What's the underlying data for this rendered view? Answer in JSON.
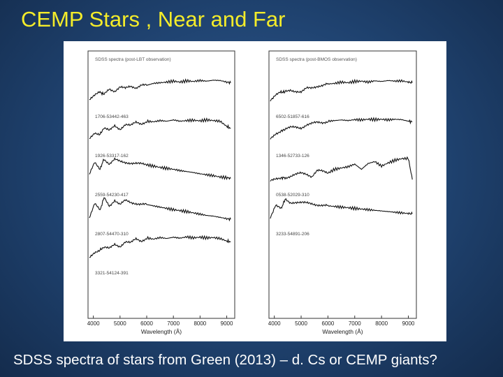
{
  "slide": {
    "title": "CEMP Stars , Near and Far",
    "caption": "SDSS spectra of stars from Green (2013) – d. Cs or CEMP giants?"
  },
  "colors": {
    "background": "#1f426f",
    "title": "#f4ec2a",
    "caption": "#ffffff",
    "spectrum": "#111111"
  },
  "chart_data": [
    {
      "type": "line",
      "title": "SDSS spectra (post-LBT observation)",
      "xlabel": "Wavelength (Å)",
      "xlim": [
        3800,
        9300
      ],
      "xticks": [
        4000,
        5000,
        6000,
        7000,
        8000,
        9000
      ],
      "grid": false,
      "stacked_offset": true,
      "series": [
        {
          "name": "1706-53442-463",
          "x": [
            3850,
            4050,
            4250,
            4400,
            4600,
            4800,
            5000,
            5200,
            5400,
            5600,
            5800,
            6000,
            6250,
            6500,
            6750,
            7000,
            7250,
            7500,
            7750,
            8000,
            8250,
            8500,
            8750,
            9000,
            9150
          ],
          "y": [
            0.38,
            0.5,
            0.58,
            0.52,
            0.7,
            0.62,
            0.74,
            0.7,
            0.77,
            0.73,
            0.82,
            0.8,
            0.86,
            0.88,
            0.9,
            0.93,
            0.9,
            0.94,
            0.92,
            0.95,
            0.93,
            0.96,
            0.95,
            0.9,
            0.88
          ]
        },
        {
          "name": "1926-53317-162",
          "x": [
            3850,
            4050,
            4250,
            4400,
            4600,
            4800,
            5000,
            5200,
            5400,
            5600,
            5800,
            6000,
            6250,
            6500,
            6750,
            7000,
            7250,
            7500,
            7750,
            8000,
            8250,
            8500,
            8750,
            9000,
            9150
          ],
          "y": [
            0.35,
            0.55,
            0.5,
            0.68,
            0.6,
            0.76,
            0.66,
            0.8,
            0.76,
            0.86,
            0.82,
            0.9,
            0.88,
            0.92,
            0.9,
            0.94,
            0.9,
            0.92,
            0.93,
            0.91,
            0.94,
            0.92,
            0.9,
            0.74,
            0.68
          ]
        },
        {
          "name": "2559-54230-417",
          "x": [
            3850,
            4050,
            4250,
            4400,
            4600,
            4800,
            5000,
            5200,
            5400,
            5600,
            5800,
            6000,
            6250,
            6500,
            6750,
            7000,
            7250,
            7500,
            7750,
            8000,
            8250,
            8500,
            8750,
            9000,
            9150
          ],
          "y": [
            0.45,
            0.82,
            0.62,
            0.95,
            0.78,
            0.92,
            0.86,
            0.84,
            0.82,
            0.8,
            0.78,
            0.76,
            0.72,
            0.68,
            0.65,
            0.62,
            0.58,
            0.55,
            0.52,
            0.48,
            0.45,
            0.42,
            0.38,
            0.36,
            0.34
          ]
        },
        {
          "name": "2807-54470-310",
          "x": [
            3850,
            4050,
            4250,
            4400,
            4600,
            4800,
            5000,
            5200,
            5400,
            5600,
            5800,
            6000,
            6250,
            6500,
            6750,
            7000,
            7250,
            7500,
            7750,
            8000,
            8250,
            8500,
            8750,
            9000,
            9150
          ],
          "y": [
            0.35,
            0.78,
            0.55,
            0.96,
            0.7,
            0.88,
            0.74,
            0.86,
            0.8,
            0.78,
            0.76,
            0.74,
            0.7,
            0.66,
            0.62,
            0.58,
            0.55,
            0.52,
            0.48,
            0.44,
            0.4,
            0.38,
            0.34,
            0.3,
            0.28
          ]
        },
        {
          "name": "3321-54124-391",
          "x": [
            3850,
            4050,
            4250,
            4400,
            4600,
            4800,
            5000,
            5200,
            5400,
            5600,
            5800,
            6000,
            6250,
            6500,
            6750,
            7000,
            7250,
            7500,
            7750,
            8000,
            8250,
            8500,
            8750,
            9000,
            9150
          ],
          "y": [
            0.3,
            0.48,
            0.55,
            0.62,
            0.58,
            0.72,
            0.66,
            0.8,
            0.76,
            0.88,
            0.82,
            0.92,
            0.88,
            0.93,
            0.9,
            0.94,
            0.91,
            0.95,
            0.92,
            0.94,
            0.92,
            0.93,
            0.9,
            0.82,
            0.8
          ]
        }
      ]
    },
    {
      "type": "line",
      "title": "SDSS spectra (post-BMOS observation)",
      "xlabel": "Wavelength (Å)",
      "xlim": [
        3800,
        9300
      ],
      "xticks": [
        4000,
        5000,
        6000,
        7000,
        8000,
        9000
      ],
      "grid": false,
      "stacked_offset": true,
      "series": [
        {
          "name": "6502-51857-616",
          "x": [
            3850,
            4050,
            4250,
            4400,
            4600,
            4800,
            5000,
            5200,
            5400,
            5600,
            5800,
            6000,
            6250,
            6500,
            6750,
            7000,
            7250,
            7500,
            7750,
            8000,
            8250,
            8500,
            8750,
            9000,
            9150
          ],
          "y": [
            0.35,
            0.5,
            0.58,
            0.6,
            0.66,
            0.62,
            0.58,
            0.7,
            0.72,
            0.78,
            0.8,
            0.84,
            0.86,
            0.9,
            0.88,
            0.92,
            0.93,
            0.9,
            0.94,
            0.92,
            0.95,
            0.93,
            0.94,
            0.9,
            0.88
          ]
        },
        {
          "name": "1346-52733-126",
          "x": [
            3850,
            4050,
            4250,
            4400,
            4600,
            4800,
            5000,
            5200,
            5400,
            5600,
            5800,
            6000,
            6250,
            6500,
            6750,
            7000,
            7250,
            7500,
            7750,
            8000,
            8250,
            8500,
            8750,
            9000,
            9150
          ],
          "y": [
            0.35,
            0.52,
            0.6,
            0.64,
            0.7,
            0.72,
            0.7,
            0.78,
            0.82,
            0.86,
            0.86,
            0.9,
            0.92,
            0.94,
            0.92,
            0.95,
            0.94,
            0.96,
            0.95,
            0.96,
            0.94,
            0.96,
            0.95,
            0.9,
            0.88
          ]
        },
        {
          "name": "0538-52029-310",
          "x": [
            3850,
            4050,
            4250,
            4400,
            4600,
            4800,
            5000,
            5200,
            5400,
            5600,
            5800,
            6000,
            6250,
            6500,
            6750,
            7000,
            7250,
            7500,
            7750,
            8000,
            8250,
            8500,
            8750,
            9000,
            9150
          ],
          "y": [
            0.25,
            0.3,
            0.35,
            0.36,
            0.4,
            0.45,
            0.5,
            0.48,
            0.4,
            0.58,
            0.55,
            0.5,
            0.62,
            0.66,
            0.7,
            0.78,
            0.62,
            0.8,
            0.86,
            0.72,
            0.82,
            0.9,
            0.95,
            0.96,
            0.3
          ]
        },
        {
          "name": "3233-54891-206",
          "x": [
            3850,
            4050,
            4250,
            4400,
            4600,
            4800,
            5000,
            5200,
            5400,
            5600,
            5800,
            6000,
            6250,
            6500,
            6750,
            7000,
            7250,
            7500,
            7750,
            8000,
            8250,
            8500,
            8750,
            9000,
            9150
          ],
          "y": [
            0.35,
            0.72,
            0.6,
            0.9,
            0.8,
            0.82,
            0.8,
            0.78,
            0.76,
            0.74,
            0.72,
            0.7,
            0.68,
            0.66,
            0.64,
            0.62,
            0.6,
            0.58,
            0.56,
            0.54,
            0.52,
            0.5,
            0.48,
            0.46,
            0.45
          ]
        }
      ]
    }
  ]
}
